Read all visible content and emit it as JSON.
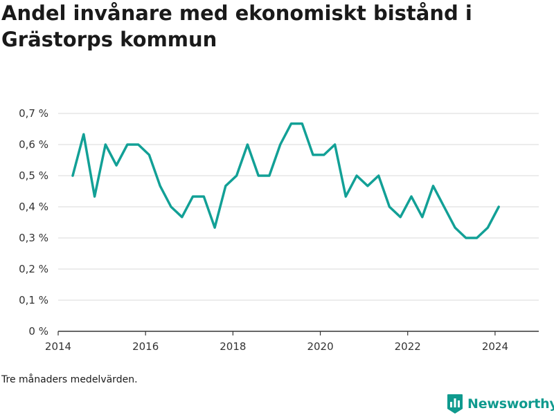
{
  "title": "Andel invånare med ekonomiskt bistånd i Grästorps kommun",
  "note": "Tre månaders medelvärden.",
  "brand": {
    "name": "Newsworthy",
    "color": "#0f9a8e"
  },
  "icons": {
    "logo": "bar-chart-badge-icon"
  },
  "chart_data": {
    "type": "line",
    "title": "Andel invånare med ekonomiskt bistånd i Grästorps kommun",
    "xlabel": "",
    "ylabel": "",
    "x_ticks": [
      "2014",
      "2016",
      "2018",
      "2020",
      "2022",
      "2024"
    ],
    "y_ticks": [
      "0 %",
      "0,1 %",
      "0,2 %",
      "0,3 %",
      "0,4 %",
      "0,5 %",
      "0,6 %",
      "0,7 %"
    ],
    "xlim": [
      "2014-01",
      "2025-01"
    ],
    "ylim": [
      0,
      0.7
    ],
    "y_unit": "%",
    "grid": "horizontal",
    "line_color": "#12a096",
    "series": [
      {
        "x": [
          "2014-05",
          "2014-08",
          "2014-11",
          "2015-02",
          "2015-05",
          "2015-08",
          "2015-11",
          "2016-02",
          "2016-05",
          "2016-08",
          "2016-11",
          "2017-02",
          "2017-05",
          "2017-08",
          "2017-11",
          "2018-02",
          "2018-05",
          "2018-08",
          "2018-11",
          "2019-02",
          "2019-05",
          "2019-08",
          "2019-11",
          "2020-02",
          "2020-05",
          "2020-08",
          "2020-11",
          "2021-02",
          "2021-05",
          "2021-08",
          "2021-11",
          "2022-02",
          "2022-05",
          "2022-08",
          "2022-11",
          "2023-02",
          "2023-05",
          "2023-08",
          "2023-11",
          "2024-02"
        ],
        "values": [
          0.5,
          0.633,
          0.433,
          0.6,
          0.533,
          0.6,
          0.6,
          0.567,
          0.467,
          0.4,
          0.367,
          0.433,
          0.433,
          0.333,
          0.467,
          0.5,
          0.6,
          0.5,
          0.5,
          0.6,
          0.667,
          0.667,
          0.567,
          0.567,
          0.6,
          0.433,
          0.5,
          0.467,
          0.5,
          0.4,
          0.367,
          0.433,
          0.367,
          0.467,
          0.4,
          0.333,
          0.3,
          0.3,
          0.333,
          0.4
        ]
      }
    ]
  }
}
